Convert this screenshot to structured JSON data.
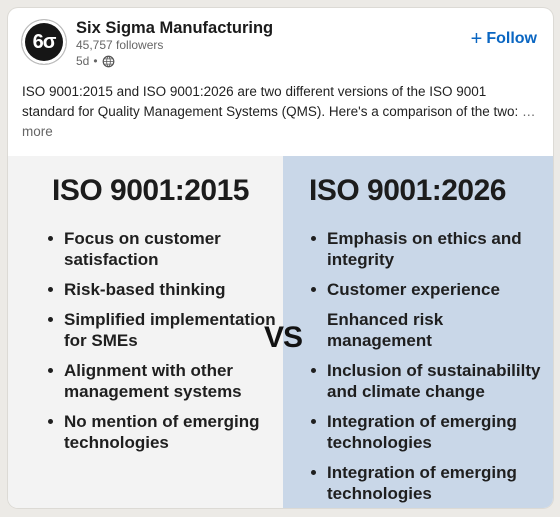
{
  "post": {
    "company_name": "Six Sigma Manufacturing",
    "avatar_text": "6σ",
    "followers": "45,757 followers",
    "time": "5d",
    "separator": "•",
    "follow_label": "Follow",
    "follow_plus": "+",
    "text": "ISO 9001:2015 and ISO 9001:2026 are two different versions of the ISO 9001 standard for Quality Management Systems (QMS). Here's a comparison of the two:",
    "more_label": "…more"
  },
  "infographic": {
    "left": {
      "title": "ISO 9001:2015",
      "points": [
        "Focus on customer satisfaction",
        "Risk-based thinking",
        "Simplified implementation for SMEs",
        "Alignment with other management systems",
        "No mention of emerging technologies"
      ]
    },
    "vs": "VS",
    "right": {
      "title": "ISO 9001:2026",
      "points": [
        "Emphasis on ethics and integrity",
        "Customer experience",
        "Enhanced risk management",
        "Inclusion of sustainabililty and climate change",
        "Integration of emerging technologies",
        "Integration of emerging technologies"
      ]
    },
    "colors": {
      "left_bg": "#f3f3f3",
      "right_bg": "#c9d7e8",
      "accent": "#0a66c2"
    }
  },
  "icons": {
    "globe": "globe-icon"
  }
}
